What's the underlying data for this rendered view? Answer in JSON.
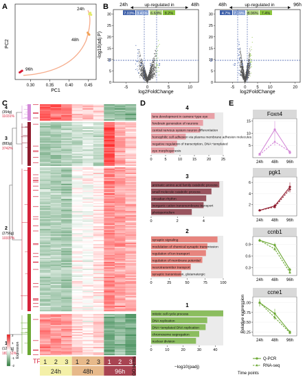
{
  "panels": {
    "A": "A",
    "B": "B",
    "C": "C",
    "D": "D",
    "E": "E"
  },
  "panel_a": {
    "xlabel": "PC1",
    "ylabel": "PC2",
    "xticks": [
      "0.30",
      "0.35",
      "0.40",
      "0.45"
    ],
    "labels": [
      "24h",
      "48h",
      "96h"
    ]
  },
  "panel_b": {
    "left": {
      "from": "24h",
      "to": "48h",
      "up_label": "up-regulated in",
      "pcts": [
        "7.03%",
        "3.43%",
        "6.63%",
        "8.2%"
      ]
    },
    "right": {
      "from": "48h",
      "to": "96h",
      "up_label": "up-regulated in",
      "pcts": [
        "4.7%",
        "7.19%",
        "8.06%",
        "7.4%"
      ]
    },
    "ylabel": "-log10(adj P)",
    "xlabel": "log2FoldChange",
    "yticks": [
      "0",
      "5",
      "10",
      "15",
      "20",
      "25",
      "30"
    ],
    "left_xticks": [
      "-5",
      "0",
      "5",
      "10"
    ],
    "right_xticks": [
      "-5",
      "0",
      "5",
      "10",
      "20"
    ],
    "thresholds": [
      "-2",
      "1",
      "2"
    ],
    "marker": "3"
  },
  "panel_c": {
    "clusters": [
      {
        "id": "4",
        "count": "(354g)",
        "tf": "11031%"
      },
      {
        "id": "3",
        "count": "(883g)",
        "tf": "3742%"
      },
      {
        "id": "2",
        "count": "(2756g)",
        "tf": "10337%"
      },
      {
        "id": "1",
        "count": "(1222g)",
        "tf": "183151%"
      }
    ],
    "tf_label": "TF",
    "replicates": [
      "1",
      "2",
      "3",
      "1",
      "2",
      "3",
      "1",
      "2",
      "3"
    ],
    "timepoints": [
      "24h",
      "48h",
      "96h"
    ],
    "legend_title": "Expression",
    "legend_ticks": [
      "2",
      "1",
      "0",
      "-1",
      "-2"
    ],
    "go_label": "GO terms"
  },
  "panel_d": {
    "clusters": [
      {
        "id": "4",
        "terms": [
          "lens development in camera−type eye",
          "forebrain generation of neurons",
          "central nervous system neuron differentiation",
          "homophilic cell adhesion via plasma membrane adhesion molecules",
          "negative regulation of transcription, DNA−templated",
          "eye morphogenesis"
        ],
        "xticks": [
          "0",
          "5",
          "10",
          "15",
          "20",
          "25"
        ]
      },
      {
        "id": "3",
        "terms": [
          "aromatic amino acid family catabolic process",
          "small molecule catabolic process",
          "circadian rhythm",
          "inorganic cation transmembrane transport",
          "photoperiodism"
        ],
        "xticks": [
          "0",
          "2",
          "4"
        ]
      },
      {
        "id": "2",
        "terms": [
          "synaptic signaling",
          "modulation of chemical synaptic transmission",
          "regulation of ion transport",
          "regulation of membrane potential",
          "neurotransmitter transport",
          "synaptic transmission, glutamatergic"
        ],
        "xticks": [
          "0",
          "25",
          "50",
          "75",
          "100"
        ]
      },
      {
        "id": "1",
        "terms": [
          "mitotic cell cycle process",
          "DNA replication",
          "DNA−templated DNA replication",
          "chromosome segregation",
          "nuclear division"
        ],
        "xticks": [
          "0",
          "10",
          "20",
          "30",
          "40"
        ]
      }
    ],
    "xlabel": "−log10(padj)"
  },
  "panel_e": {
    "genes": [
      {
        "name": "Foxn4",
        "yticks": [
          "5",
          "10",
          "15"
        ]
      },
      {
        "name": "pgk1",
        "yticks": [
          "2",
          "4",
          "6"
        ]
      },
      {
        "name": "ccnb1",
        "yticks": [
          "0.3",
          "0.6",
          "0.9"
        ]
      },
      {
        "name": "ccne1",
        "yticks": [
          "0.25",
          "0.50",
          "0.75",
          "1.00"
        ]
      }
    ],
    "xticks": [
      "24h",
      "48h",
      "96h"
    ],
    "ylabel": "Relative expression",
    "xlabel": "Time points",
    "legend": [
      "Q-PCR",
      "RNA-seq"
    ]
  },
  "colors": {
    "cluster4": "#d48ad8",
    "cluster3": "#8e1a2c",
    "cluster2": "#d6213a",
    "cluster1": "#6aa732",
    "heat_high": "#e82020",
    "heat_low": "#2f7e3d",
    "down": "#3c5ea8",
    "up": "#8dc63f",
    "go4": "#e8a0a6",
    "go3": "#99545e",
    "go2": "#e7857e",
    "go1": "#8bbd5f",
    "t24": "#f4f0a8",
    "t48": "#e7b98a",
    "t96": "#a94452"
  },
  "chart_data": [
    {
      "type": "scatter",
      "title": "",
      "xlabel": "PC1",
      "ylabel": "PC2",
      "series": [
        {
          "name": "24h",
          "x": [
            0.452,
            0.455,
            0.457
          ],
          "y": [
            0.95,
            0.98,
            0.93
          ]
        },
        {
          "name": "48h",
          "x": [
            0.45,
            0.448,
            0.452
          ],
          "y": [
            0.45,
            0.48,
            0.43
          ]
        },
        {
          "name": "96h",
          "x": [
            0.275,
            0.278,
            0.272
          ],
          "y": [
            -0.5,
            -0.48,
            -0.52
          ]
        }
      ],
      "xlim": [
        0.26,
        0.47
      ]
    },
    {
      "type": "bar",
      "title": "",
      "xlabel": "−log10(padj)",
      "categories": [
        "lens development in camera−type eye",
        "forebrain generation of neurons",
        "central nervous system neuron differentiation",
        "homophilic cell adhesion via plasma membrane adhesion molecules",
        "negative regulation of transcription, DNA−templated",
        "eye morphogenesis"
      ],
      "values": [
        22,
        18,
        17,
        12,
        9,
        8
      ],
      "xlim": [
        0,
        25
      ]
    },
    {
      "type": "bar",
      "title": "",
      "xlabel": "−log10(padj)",
      "categories": [
        "aromatic amino acid family catabolic process",
        "small molecule catabolic process",
        "circadian rhythm",
        "inorganic cation transmembrane transport",
        "photoperiodism"
      ],
      "values": [
        5.2,
        4.6,
        4.2,
        4.0,
        3.1
      ],
      "xlim": [
        0,
        5.5
      ]
    },
    {
      "type": "bar",
      "title": "",
      "xlabel": "−log10(padj)",
      "categories": [
        "synaptic signaling",
        "modulation of chemical synaptic transmission",
        "regulation of ion transport",
        "regulation of membrane potential",
        "neurotransmitter transport",
        "synaptic transmission, glutamatergic"
      ],
      "values": [
        92,
        78,
        76,
        71,
        55,
        42
      ],
      "xlim": [
        0,
        100
      ]
    },
    {
      "type": "bar",
      "title": "",
      "xlabel": "−log10(padj)",
      "categories": [
        "mitotic cell cycle process",
        "DNA replication",
        "DNA−templated DNA replication",
        "chromosome segregation",
        "nuclear division"
      ],
      "values": [
        45,
        35,
        34,
        30,
        28
      ],
      "xlim": [
        0,
        45
      ]
    },
    {
      "type": "line",
      "title": "Foxn4",
      "categories": [
        "24h",
        "48h",
        "96h"
      ],
      "series": [
        {
          "name": "Q-PCR",
          "values": [
            1.5,
            11.5,
            2.0
          ],
          "err": [
            0.5,
            3.5,
            0.5
          ]
        },
        {
          "name": "RNA-seq",
          "values": [
            1.2,
            6.5,
            2.5
          ],
          "err": [
            0.3,
            1.5,
            0.5
          ]
        }
      ],
      "ylim": [
        0,
        16
      ]
    },
    {
      "type": "line",
      "title": "pgk1",
      "categories": [
        "24h",
        "48h",
        "96h"
      ],
      "series": [
        {
          "name": "Q-PCR",
          "values": [
            1.0,
            1.8,
            5.2
          ],
          "err": [
            0.2,
            0.4,
            0.8
          ]
        },
        {
          "name": "RNA-seq",
          "values": [
            1.0,
            1.6,
            4.8
          ],
          "err": [
            0.2,
            0.3,
            0.6
          ]
        }
      ],
      "ylim": [
        0,
        7
      ]
    },
    {
      "type": "line",
      "title": "ccnb1",
      "categories": [
        "24h",
        "48h",
        "96h"
      ],
      "series": [
        {
          "name": "Q-PCR",
          "values": [
            1.0,
            0.88,
            0.25
          ],
          "err": [
            0.04,
            0.06,
            0.05
          ]
        },
        {
          "name": "RNA-seq",
          "values": [
            1.0,
            0.78,
            0.18
          ],
          "err": [
            0.04,
            0.05,
            0.04
          ]
        }
      ],
      "ylim": [
        0.1,
        1.1
      ]
    },
    {
      "type": "line",
      "title": "ccne1",
      "categories": [
        "24h",
        "48h",
        "96h"
      ],
      "series": [
        {
          "name": "Q-PCR",
          "values": [
            1.0,
            0.72,
            0.25
          ],
          "err": [
            0.1,
            0.12,
            0.05
          ]
        },
        {
          "name": "RNA-seq",
          "values": [
            1.0,
            0.62,
            0.23
          ],
          "err": [
            0.08,
            0.06,
            0.04
          ]
        }
      ],
      "ylim": [
        0.15,
        1.15
      ]
    }
  ]
}
